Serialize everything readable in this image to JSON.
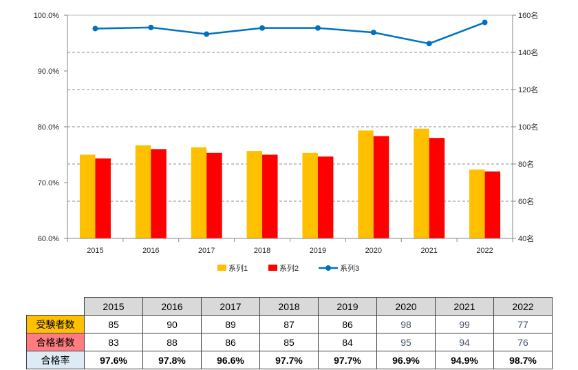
{
  "chart_data": {
    "type": "bar",
    "secondary_type": "line",
    "categories": [
      "2015",
      "2016",
      "2017",
      "2018",
      "2019",
      "2020",
      "2021",
      "2022"
    ],
    "series": [
      {
        "name": "系列1",
        "type": "bar",
        "axis": "right",
        "color": "#FFC000",
        "values": [
          85,
          90,
          89,
          87,
          86,
          98,
          99,
          77
        ]
      },
      {
        "name": "系列2",
        "type": "bar",
        "axis": "right",
        "color": "#FF0000",
        "values": [
          83,
          88,
          86,
          85,
          84,
          95,
          94,
          76
        ]
      },
      {
        "name": "系列3",
        "type": "line",
        "axis": "left",
        "color": "#0070C0",
        "values": [
          97.6,
          97.8,
          96.6,
          97.7,
          97.7,
          96.9,
          94.9,
          98.7
        ]
      }
    ],
    "left_axis": {
      "ylim": [
        60,
        100
      ],
      "step": 10,
      "tick_labels": [
        "60.0%",
        "70.0%",
        "80.0%",
        "90.0%",
        "100.0%"
      ]
    },
    "right_axis": {
      "ylim": [
        40,
        160
      ],
      "step": 20,
      "tick_labels": [
        "40名",
        "60名",
        "80名",
        "100名",
        "120名",
        "140名",
        "160名"
      ]
    },
    "grid": true,
    "legend_position": "bottom"
  },
  "table": {
    "headers": [
      "2015",
      "2016",
      "2017",
      "2018",
      "2019",
      "2020",
      "2021",
      "2022"
    ],
    "rows": [
      {
        "label": "受験者数",
        "color": "#FFC000",
        "values": [
          "85",
          "90",
          "89",
          "87",
          "86",
          "98",
          "99",
          "77"
        ]
      },
      {
        "label": "合格者数",
        "color": "#FF7C80",
        "values": [
          "83",
          "88",
          "86",
          "85",
          "84",
          "95",
          "94",
          "76"
        ]
      },
      {
        "label": "合格率",
        "color": "#DDEBF7",
        "values": [
          "97.6%",
          "97.8%",
          "96.6%",
          "97.7%",
          "97.7%",
          "96.9%",
          "94.9%",
          "98.7%"
        ]
      }
    ]
  }
}
